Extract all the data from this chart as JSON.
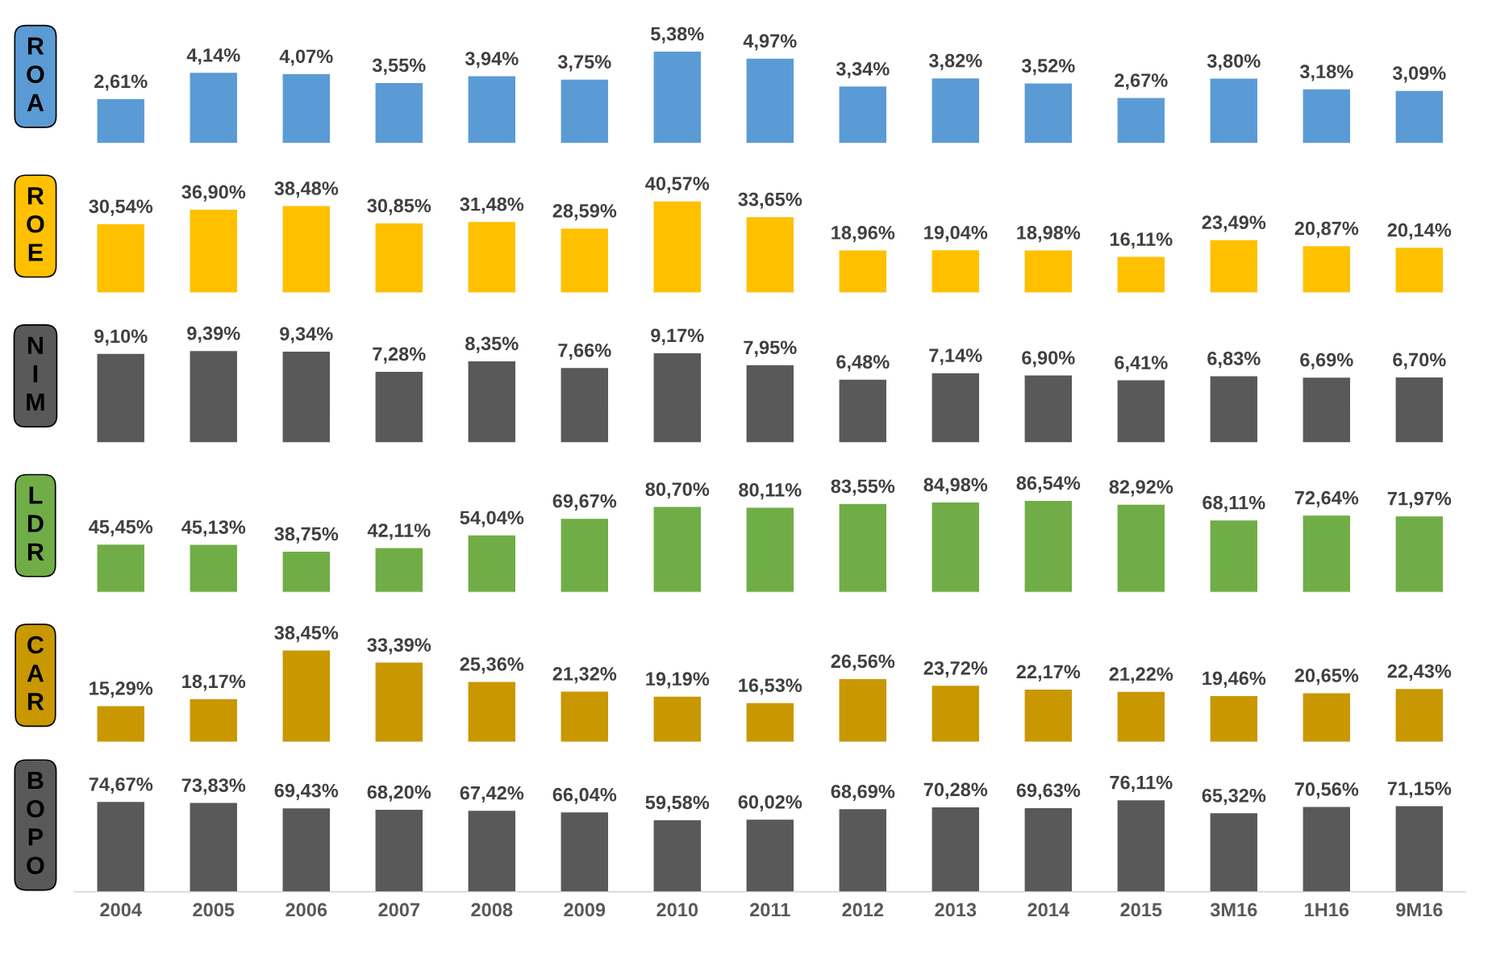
{
  "chart_data": [
    {
      "type": "bar",
      "title": "ROA",
      "tick_labels": false,
      "categories": [
        null,
        null,
        null,
        null,
        null,
        null,
        null,
        null,
        null,
        null,
        null,
        null,
        null,
        null,
        null
      ],
      "values": [
        2.61,
        4.14,
        4.07,
        3.55,
        3.94,
        3.75,
        5.38,
        4.97,
        3.34,
        3.82,
        3.52,
        2.67,
        3.8,
        3.18,
        3.09
      ],
      "color": "#5b9bd5",
      "value_labels": [
        "2,61%",
        "4,14%",
        "4,07%",
        "3,55%",
        "3,94%",
        "3,75%",
        "5,38%",
        "4,97%",
        "3,34%",
        "3,82%",
        "3,52%",
        "2,67%",
        "3,80%",
        "3,18%",
        "3,09%"
      ]
    },
    {
      "type": "bar",
      "title": "ROE",
      "tick_labels": false,
      "categories": [
        null,
        null,
        null,
        null,
        null,
        null,
        null,
        null,
        null,
        null,
        null,
        null,
        null,
        null,
        null
      ],
      "values": [
        30.54,
        36.9,
        38.48,
        30.85,
        31.48,
        28.59,
        40.57,
        33.65,
        18.96,
        19.04,
        18.98,
        16.11,
        23.49,
        20.87,
        20.14
      ],
      "color": "#ffc000",
      "value_labels": [
        "30,54%",
        "36,90%",
        "38,48%",
        "30,85%",
        "31,48%",
        "28,59%",
        "40,57%",
        "33,65%",
        "18,96%",
        "19,04%",
        "18,98%",
        "16,11%",
        "23,49%",
        "20,87%",
        "20,14%"
      ]
    },
    {
      "type": "bar",
      "title": "NIM",
      "tick_labels": false,
      "categories": [
        null,
        null,
        null,
        null,
        null,
        null,
        null,
        null,
        null,
        null,
        null,
        null,
        null,
        null,
        null
      ],
      "values": [
        9.1,
        9.39,
        9.34,
        7.28,
        8.35,
        7.66,
        9.17,
        7.95,
        6.48,
        7.14,
        6.9,
        6.41,
        6.83,
        6.69,
        6.7
      ],
      "color": "#595959",
      "value_labels": [
        "9,10%",
        "9,39%",
        "9,34%",
        "7,28%",
        "8,35%",
        "7,66%",
        "9,17%",
        "7,95%",
        "6,48%",
        "7,14%",
        "6,90%",
        "6,41%",
        "6,83%",
        "6,69%",
        "6,70%"
      ]
    },
    {
      "type": "bar",
      "title": "LDR",
      "tick_labels": false,
      "categories": [
        null,
        null,
        null,
        null,
        null,
        null,
        null,
        null,
        null,
        null,
        null,
        null,
        null,
        null,
        null
      ],
      "values": [
        45.45,
        45.13,
        38.75,
        42.11,
        54.04,
        69.67,
        80.7,
        80.11,
        83.55,
        84.98,
        86.54,
        82.92,
        68.11,
        72.64,
        71.97
      ],
      "color": "#70ad47",
      "value_labels": [
        "45,45%",
        "45,13%",
        "38,75%",
        "42,11%",
        "54,04%",
        "69,67%",
        "80,70%",
        "80,11%",
        "83,55%",
        "84,98%",
        "86,54%",
        "82,92%",
        "68,11%",
        "72,64%",
        "71,97%"
      ]
    },
    {
      "type": "bar",
      "title": "CAR",
      "tick_labels": false,
      "categories": [
        null,
        null,
        null,
        null,
        null,
        null,
        null,
        null,
        null,
        null,
        null,
        null,
        null,
        null,
        null
      ],
      "values": [
        15.29,
        18.17,
        38.45,
        33.39,
        25.36,
        21.32,
        19.19,
        16.53,
        26.56,
        23.72,
        22.17,
        21.22,
        19.46,
        20.65,
        22.43
      ],
      "color": "#c99700",
      "value_labels": [
        "15,29%",
        "18,17%",
        "38,45%",
        "33,39%",
        "25,36%",
        "21,32%",
        "19,19%",
        "16,53%",
        "26,56%",
        "23,72%",
        "22,17%",
        "21,22%",
        "19,46%",
        "20,65%",
        "22,43%"
      ]
    },
    {
      "type": "bar",
      "title": "BOPO",
      "tick_labels": "x",
      "categories": [
        "2004",
        "2005",
        "2006",
        "2007",
        "2008",
        "2009",
        "2010",
        "2011",
        "2012",
        "2013",
        "2014",
        "2015",
        "3M16",
        "1H16",
        "9M16"
      ],
      "values": [
        74.67,
        73.83,
        69.43,
        68.2,
        67.42,
        66.04,
        59.58,
        60.02,
        68.69,
        70.28,
        69.63,
        76.11,
        65.32,
        70.56,
        71.15
      ],
      "color": "#595959",
      "value_labels": [
        "74,67%",
        "73,83%",
        "69,43%",
        "68,20%",
        "67,42%",
        "66,04%",
        "59,58%",
        "60,02%",
        "68,69%",
        "70,28%",
        "69,63%",
        "76,11%",
        "65,32%",
        "70,56%",
        "71,15%"
      ]
    }
  ]
}
